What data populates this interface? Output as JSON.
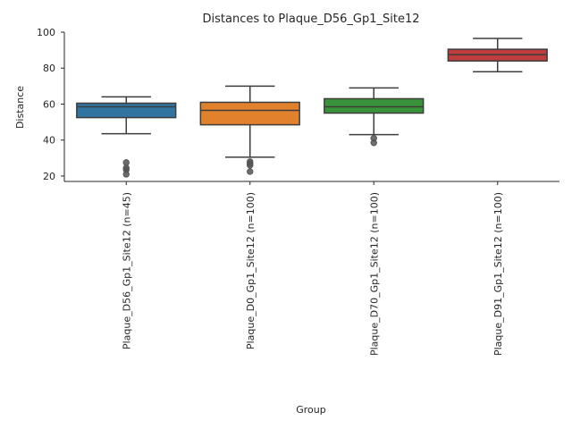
{
  "chart_data": {
    "type": "box",
    "title": "Distances to Plaque_D56_Gp1_Site12",
    "xlabel": "Group",
    "ylabel": "Distance",
    "ylim": [
      17,
      100
    ],
    "yticks": [
      20,
      40,
      60,
      80,
      100
    ],
    "grid": false,
    "legend": "none",
    "categories": [
      "Plaque_D56_Gp1_Site12 (n=45)",
      "Plaque_D0_Gp1_Site12 (n=100)",
      "Plaque_D70_Gp1_Site12 (n=100)",
      "Plaque_D91_Gp1_Site12 (n=100)"
    ],
    "boxes": [
      {
        "whislo": 43.5,
        "q1": 52.5,
        "med": 58.5,
        "q3": 60.5,
        "whishi": 64,
        "fliers": [
          27.5,
          24.5,
          23.5,
          21
        ],
        "color": "#3274a1"
      },
      {
        "whislo": 30.5,
        "q1": 48.5,
        "med": 56.5,
        "q3": 61,
        "whishi": 70,
        "fliers": [
          28,
          27,
          26,
          22.5
        ],
        "color": "#e1812c"
      },
      {
        "whislo": 43,
        "q1": 55,
        "med": 58.5,
        "q3": 63,
        "whishi": 69,
        "fliers": [
          41,
          38.5
        ],
        "color": "#3a923a"
      },
      {
        "whislo": 78,
        "q1": 84,
        "med": 87.5,
        "q3": 90.5,
        "whishi": 96.5,
        "fliers": [],
        "color": "#c03d3e"
      }
    ]
  }
}
